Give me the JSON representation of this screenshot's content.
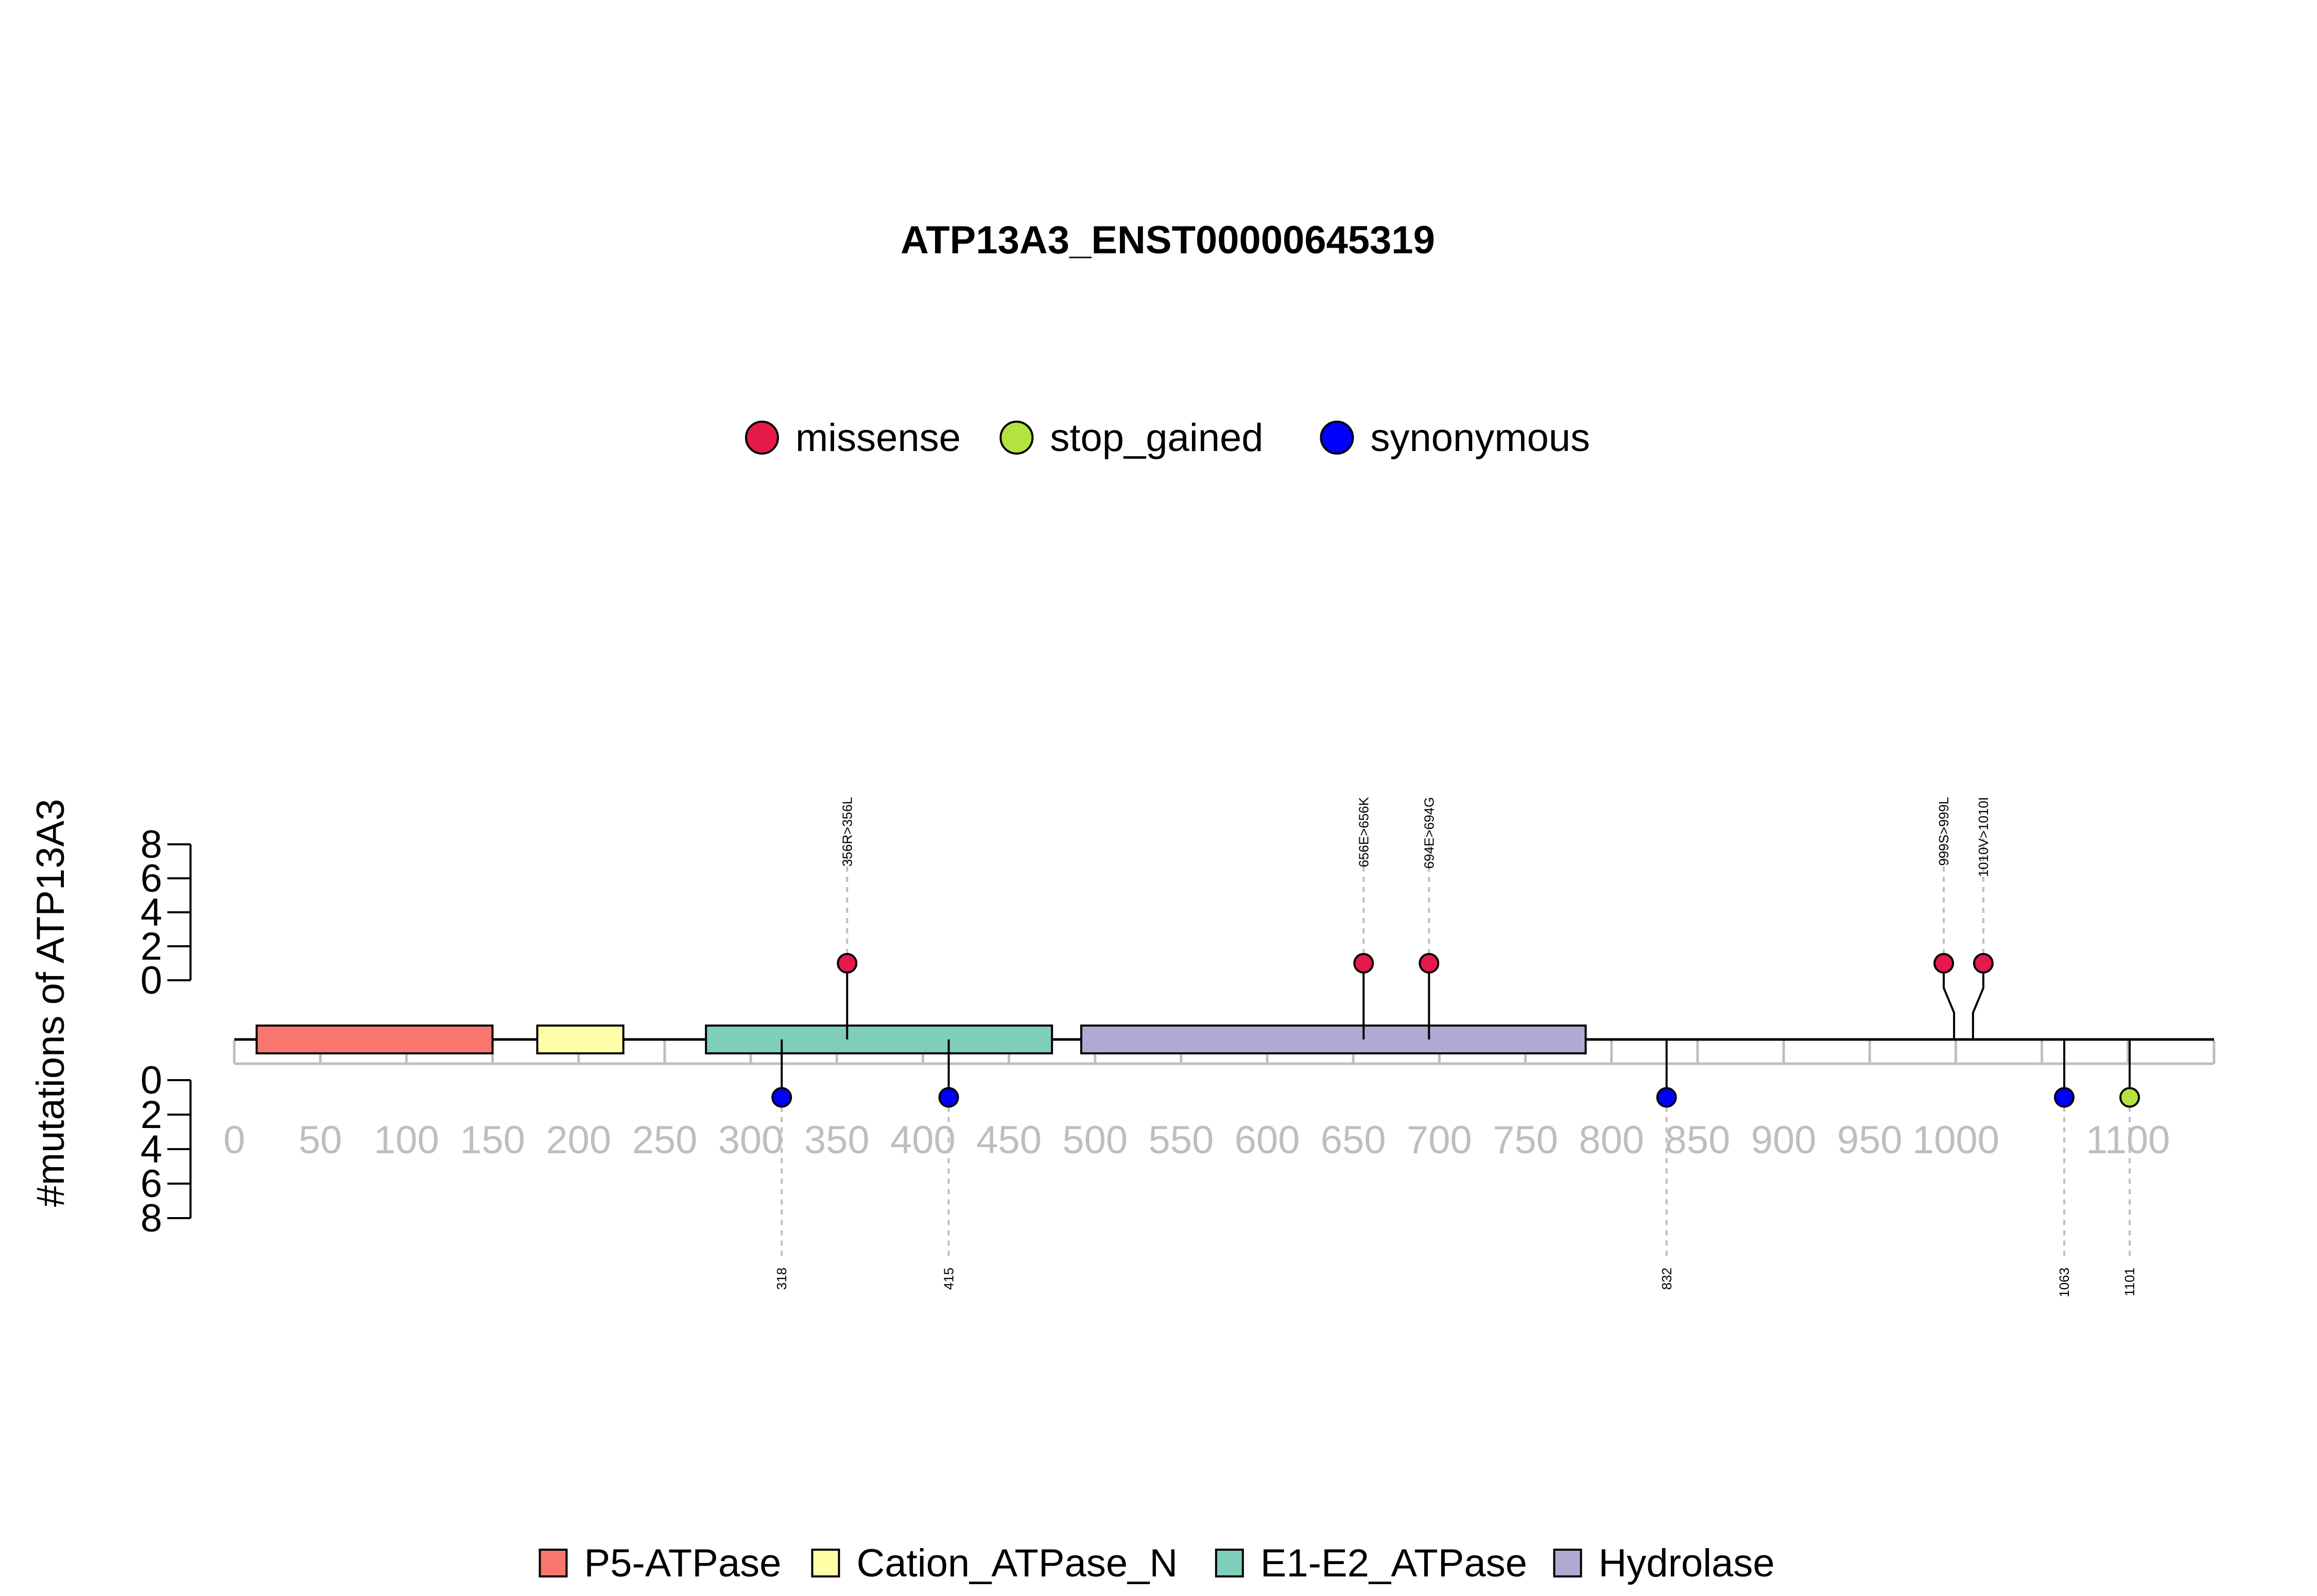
{
  "chart_data": {
    "type": "lollipop",
    "title": "ATP13A3_ENST00000645319",
    "ylabel": "#mutations of ATP13A3",
    "xlim": [
      0,
      1150
    ],
    "x_ticks": [
      0,
      50,
      100,
      150,
      200,
      250,
      300,
      350,
      400,
      450,
      500,
      550,
      600,
      650,
      700,
      750,
      800,
      850,
      900,
      950,
      1000,
      1100
    ],
    "y_ticks": [
      0,
      2,
      4,
      6,
      8
    ],
    "ylim": [
      0,
      8
    ],
    "mutation_legend": [
      {
        "name": "missense",
        "color": "#E6194B"
      },
      {
        "name": "stop_gained",
        "color": "#B3E33F"
      },
      {
        "name": "synonymous",
        "color": "#0000FF"
      }
    ],
    "domain_legend": [
      {
        "name": "P5-ATPase",
        "color": "#F8766D"
      },
      {
        "name": "Cation_ATPase_N",
        "color": "#FFFFA8"
      },
      {
        "name": "E1-E2_ATPase",
        "color": "#7FCDBB"
      },
      {
        "name": "Hydrolase",
        "color": "#B0A9D1"
      }
    ],
    "domains": [
      {
        "name": "P5-ATPase",
        "start": 13,
        "end": 150
      },
      {
        "name": "Cation_ATPase_N",
        "start": 176,
        "end": 226
      },
      {
        "name": "E1-E2_ATPase",
        "start": 274,
        "end": 475
      },
      {
        "name": "Hydrolase",
        "start": 492,
        "end": 785
      }
    ],
    "upper_mutations": [
      {
        "label": "356R>356L",
        "pos": 356,
        "count": 1,
        "type": "missense",
        "display_pos": 356
      },
      {
        "label": "656E>656K",
        "pos": 656,
        "count": 1,
        "type": "missense",
        "display_pos": 656
      },
      {
        "label": "694E>694G",
        "pos": 694,
        "count": 1,
        "type": "missense",
        "display_pos": 694
      },
      {
        "label": "999S>999L",
        "pos": 999,
        "count": 1,
        "type": "missense",
        "display_pos": 993
      },
      {
        "label": "1010V>1010I",
        "pos": 1010,
        "count": 1,
        "type": "missense",
        "display_pos": 1016
      }
    ],
    "lower_mutations": [
      {
        "label": "318",
        "pos": 318,
        "count": 1,
        "type": "synonymous"
      },
      {
        "label": "415",
        "pos": 415,
        "count": 1,
        "type": "synonymous"
      },
      {
        "label": "832",
        "pos": 832,
        "count": 1,
        "type": "synonymous"
      },
      {
        "label": "1063",
        "pos": 1063,
        "count": 1,
        "type": "synonymous"
      },
      {
        "label": "1101",
        "pos": 1101,
        "count": 1,
        "type": "stop_gained"
      }
    ]
  }
}
